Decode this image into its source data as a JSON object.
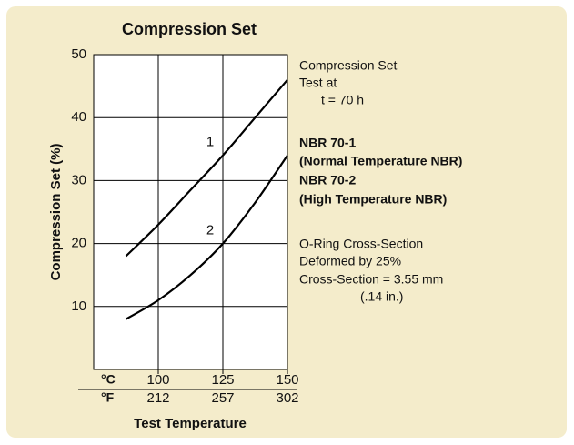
{
  "chart_data": {
    "type": "line",
    "title": "Compression Set",
    "y_label": "Compression Set (%)",
    "x_label": "Test Temperature",
    "x_unit_primary": "°C",
    "x_unit_secondary": "°F",
    "x": [
      87.5,
      100,
      112.5,
      125,
      137.5,
      150
    ],
    "series": [
      {
        "name": "1",
        "color": "#000000",
        "values": [
          18,
          23,
          28.5,
          34,
          40,
          46
        ]
      },
      {
        "name": "2",
        "color": "#000000",
        "values": [
          8,
          11,
          15,
          20,
          26.5,
          34
        ]
      }
    ],
    "xlim": [
      75,
      150
    ],
    "xticks": [
      100,
      125,
      150
    ],
    "xticks_secondary": [
      212,
      257,
      302
    ],
    "ylim": [
      0,
      50
    ],
    "yticks": [
      10,
      20,
      30,
      40,
      50
    ],
    "grid": true,
    "test_conditions": [
      "Compression Set",
      "Test at",
      "t = 70 h"
    ],
    "materials": [
      "NBR 70-1",
      "(Normal Temperature NBR)",
      "NBR 70-2",
      "(High Temperature NBR)"
    ],
    "cross_section": [
      "O-Ring Cross-Section",
      "Deformed by 25%",
      "Cross-Section = 3.55 mm",
      "(.14 in.)"
    ]
  }
}
